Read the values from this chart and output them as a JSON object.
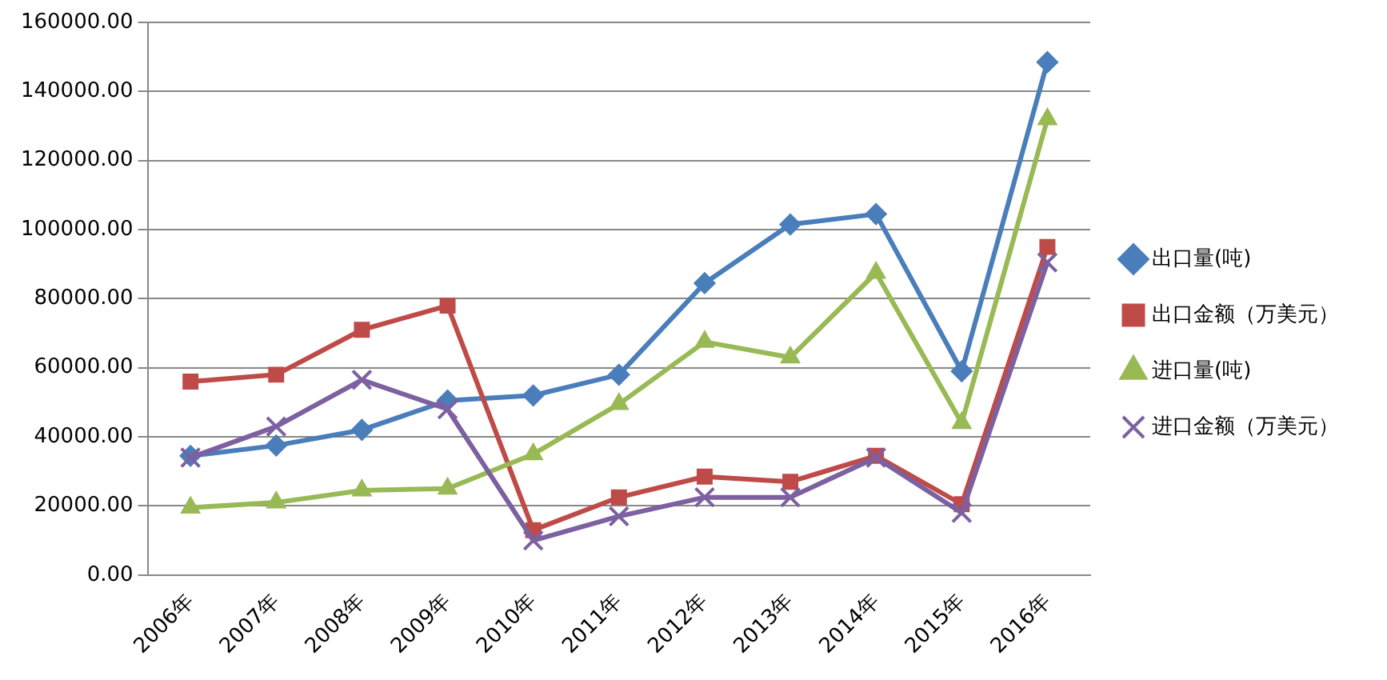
{
  "chart_data": {
    "type": "line",
    "categories": [
      "2006年",
      "2007年",
      "2008年",
      "2009年",
      "2010年",
      "2011年",
      "2012年",
      "2013年",
      "2014年",
      "2015年",
      "2016年"
    ],
    "series": [
      {
        "name": "出口量(吨)",
        "color": "#4a7ebb",
        "marker": "diamond",
        "values": [
          34500,
          37500,
          42000,
          50500,
          52000,
          58000,
          84500,
          101500,
          104500,
          59000,
          148500
        ]
      },
      {
        "name": "出口金额（万美元）",
        "color": "#be4b48",
        "marker": "square",
        "values": [
          56000,
          58000,
          71000,
          78000,
          13000,
          22500,
          28500,
          27000,
          34500,
          20500,
          95000
        ]
      },
      {
        "name": "进口量(吨)",
        "color": "#98b954",
        "marker": "triangle",
        "values": [
          19500,
          21000,
          24500,
          25000,
          35000,
          49500,
          67500,
          63000,
          87500,
          44000,
          132000
        ]
      },
      {
        "name": "进口金额（万美元）",
        "color": "#7d60a0",
        "marker": "cross",
        "values": [
          34000,
          43000,
          56500,
          48000,
          10000,
          17000,
          22500,
          22500,
          34000,
          18000,
          90500
        ]
      }
    ],
    "ylim": [
      0,
      160000
    ],
    "yticks": [
      {
        "value": 0,
        "label": "0.00"
      },
      {
        "value": 20000,
        "label": "20000.00"
      },
      {
        "value": 40000,
        "label": "40000.00"
      },
      {
        "value": 60000,
        "label": "60000.00"
      },
      {
        "value": 80000,
        "label": "80000.00"
      },
      {
        "value": 100000,
        "label": "100000.00"
      },
      {
        "value": 120000,
        "label": "120000.00"
      },
      {
        "value": 140000,
        "label": "140000.00"
      },
      {
        "value": 160000,
        "label": "160000.00"
      }
    ],
    "grid": "y",
    "legend": "right",
    "line_style": "solid"
  }
}
